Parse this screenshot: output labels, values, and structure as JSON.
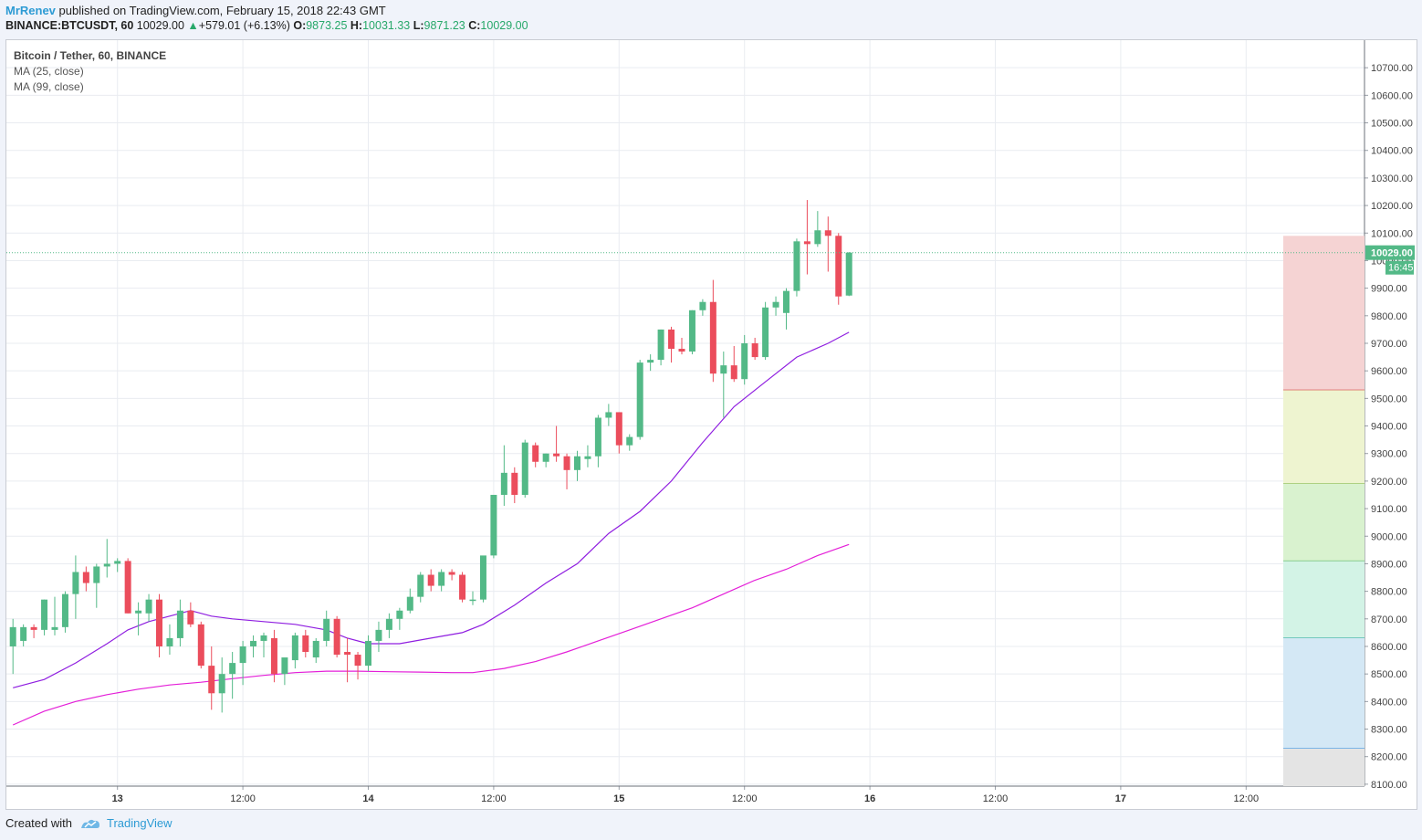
{
  "header": {
    "author": "MrRenev",
    "published_text": "published on TradingView.com, February 15, 2018 22:43 GMT",
    "symbol_interval": "BINANCE:BTCUSDT, 60",
    "last": "10029.00",
    "change": "+579.01 (+6.13%)",
    "change_arrow": "▲",
    "o_label": "O:",
    "o_value": "9873.25",
    "h_label": "H:",
    "h_value": "10031.33",
    "l_label": "L:",
    "l_value": "9871.23",
    "c_label": "C:",
    "c_value": "10029.00"
  },
  "legend": {
    "symbol": "Bitcoin / Tether, 60, BINANCE",
    "ma1": "MA (25, close)",
    "ma2": "MA (99, close)"
  },
  "footer": {
    "created_with": "Created with",
    "brand": "TradingView"
  },
  "chart_data": {
    "type": "candlestick",
    "y_axis": {
      "ticks": [
        "8100.00",
        "8200.00",
        "8300.00",
        "8400.00",
        "8500.00",
        "8600.00",
        "8700.00",
        "8800.00",
        "8900.00",
        "9000.00",
        "9100.00",
        "9200.00",
        "9300.00",
        "9400.00",
        "9500.00",
        "9600.00",
        "9700.00",
        "9800.00",
        "9900.00",
        "10000.00",
        "10100.00",
        "10200.00",
        "10300.00",
        "10400.00",
        "10500.00",
        "10600.00",
        "10700.00"
      ],
      "ylim": [
        8093,
        10800
      ]
    },
    "x_axis": {
      "ticks": [
        {
          "label": "13",
          "bold": true
        },
        {
          "label": "12:00",
          "bold": false
        },
        {
          "label": "14",
          "bold": true
        },
        {
          "label": "12:00",
          "bold": false
        },
        {
          "label": "15",
          "bold": true
        },
        {
          "label": "12:00",
          "bold": false
        },
        {
          "label": "16",
          "bold": true
        },
        {
          "label": "12:00",
          "bold": false
        },
        {
          "label": "17",
          "bold": true
        },
        {
          "label": "12:00",
          "bold": false
        }
      ],
      "bar_ticks": [
        10,
        22,
        34,
        46,
        58,
        70,
        82,
        94,
        106,
        118
      ]
    },
    "last_price": {
      "value": 10029.0,
      "label": "10029.00",
      "countdown": "16:45",
      "color": "#53b987"
    },
    "colors": {
      "up": "#53b987",
      "down": "#eb4d5c",
      "ma25": "#8f1ee0",
      "ma99": "#e41fd8"
    },
    "candles": [
      {
        "o": 8600,
        "h": 8700,
        "l": 8500,
        "c": 8670
      },
      {
        "o": 8620,
        "h": 8680,
        "l": 8600,
        "c": 8670
      },
      {
        "o": 8670,
        "h": 8680,
        "l": 8630,
        "c": 8660
      },
      {
        "o": 8660,
        "h": 8770,
        "l": 8640,
        "c": 8770
      },
      {
        "o": 8660,
        "h": 8780,
        "l": 8640,
        "c": 8670
      },
      {
        "o": 8670,
        "h": 8800,
        "l": 8650,
        "c": 8790
      },
      {
        "o": 8790,
        "h": 8930,
        "l": 8700,
        "c": 8870
      },
      {
        "o": 8870,
        "h": 8890,
        "l": 8800,
        "c": 8830
      },
      {
        "o": 8830,
        "h": 8900,
        "l": 8740,
        "c": 8890
      },
      {
        "o": 8890,
        "h": 8990,
        "l": 8850,
        "c": 8900
      },
      {
        "o": 8900,
        "h": 8920,
        "l": 8870,
        "c": 8910
      },
      {
        "o": 8910,
        "h": 8920,
        "l": 8720,
        "c": 8720
      },
      {
        "o": 8720,
        "h": 8760,
        "l": 8640,
        "c": 8730
      },
      {
        "o": 8720,
        "h": 8790,
        "l": 8690,
        "c": 8770
      },
      {
        "o": 8770,
        "h": 8790,
        "l": 8560,
        "c": 8600
      },
      {
        "o": 8600,
        "h": 8680,
        "l": 8570,
        "c": 8630
      },
      {
        "o": 8630,
        "h": 8770,
        "l": 8600,
        "c": 8730
      },
      {
        "o": 8730,
        "h": 8760,
        "l": 8670,
        "c": 8680
      },
      {
        "o": 8680,
        "h": 8690,
        "l": 8520,
        "c": 8530
      },
      {
        "o": 8530,
        "h": 8600,
        "l": 8370,
        "c": 8430
      },
      {
        "o": 8430,
        "h": 8560,
        "l": 8360,
        "c": 8500
      },
      {
        "o": 8500,
        "h": 8580,
        "l": 8410,
        "c": 8540
      },
      {
        "o": 8540,
        "h": 8620,
        "l": 8460,
        "c": 8600
      },
      {
        "o": 8600,
        "h": 8640,
        "l": 8560,
        "c": 8620
      },
      {
        "o": 8620,
        "h": 8650,
        "l": 8560,
        "c": 8640
      },
      {
        "o": 8630,
        "h": 8660,
        "l": 8470,
        "c": 8500
      },
      {
        "o": 8500,
        "h": 8550,
        "l": 8460,
        "c": 8560
      },
      {
        "o": 8550,
        "h": 8650,
        "l": 8520,
        "c": 8640
      },
      {
        "o": 8640,
        "h": 8660,
        "l": 8560,
        "c": 8580
      },
      {
        "o": 8560,
        "h": 8630,
        "l": 8540,
        "c": 8620
      },
      {
        "o": 8620,
        "h": 8730,
        "l": 8600,
        "c": 8700
      },
      {
        "o": 8700,
        "h": 8710,
        "l": 8560,
        "c": 8570
      },
      {
        "o": 8580,
        "h": 8630,
        "l": 8470,
        "c": 8570
      },
      {
        "o": 8570,
        "h": 8580,
        "l": 8480,
        "c": 8530
      },
      {
        "o": 8530,
        "h": 8640,
        "l": 8510,
        "c": 8620
      },
      {
        "o": 8620,
        "h": 8690,
        "l": 8580,
        "c": 8660
      },
      {
        "o": 8660,
        "h": 8720,
        "l": 8630,
        "c": 8700
      },
      {
        "o": 8700,
        "h": 8740,
        "l": 8660,
        "c": 8730
      },
      {
        "o": 8730,
        "h": 8810,
        "l": 8720,
        "c": 8780
      },
      {
        "o": 8780,
        "h": 8870,
        "l": 8760,
        "c": 8860
      },
      {
        "o": 8860,
        "h": 8880,
        "l": 8800,
        "c": 8820
      },
      {
        "o": 8820,
        "h": 8880,
        "l": 8800,
        "c": 8870
      },
      {
        "o": 8870,
        "h": 8880,
        "l": 8840,
        "c": 8860
      },
      {
        "o": 8860,
        "h": 8870,
        "l": 8760,
        "c": 8770
      },
      {
        "o": 8770,
        "h": 8800,
        "l": 8750,
        "c": 8770
      },
      {
        "o": 8770,
        "h": 8920,
        "l": 8760,
        "c": 8930
      },
      {
        "o": 8930,
        "h": 9150,
        "l": 8920,
        "c": 9150
      },
      {
        "o": 9150,
        "h": 9330,
        "l": 9110,
        "c": 9230
      },
      {
        "o": 9230,
        "h": 9250,
        "l": 9120,
        "c": 9150
      },
      {
        "o": 9150,
        "h": 9350,
        "l": 9140,
        "c": 9340
      },
      {
        "o": 9330,
        "h": 9340,
        "l": 9250,
        "c": 9270
      },
      {
        "o": 9270,
        "h": 9300,
        "l": 9250,
        "c": 9300
      },
      {
        "o": 9300,
        "h": 9400,
        "l": 9270,
        "c": 9290
      },
      {
        "o": 9290,
        "h": 9300,
        "l": 9170,
        "c": 9240
      },
      {
        "o": 9240,
        "h": 9310,
        "l": 9200,
        "c": 9290
      },
      {
        "o": 9280,
        "h": 9330,
        "l": 9250,
        "c": 9290
      },
      {
        "o": 9290,
        "h": 9440,
        "l": 9250,
        "c": 9430
      },
      {
        "o": 9430,
        "h": 9480,
        "l": 9400,
        "c": 9450
      },
      {
        "o": 9450,
        "h": 9450,
        "l": 9300,
        "c": 9330
      },
      {
        "o": 9330,
        "h": 9370,
        "l": 9310,
        "c": 9360
      },
      {
        "o": 9360,
        "h": 9640,
        "l": 9350,
        "c": 9630
      },
      {
        "o": 9630,
        "h": 9660,
        "l": 9600,
        "c": 9640
      },
      {
        "o": 9640,
        "h": 9750,
        "l": 9620,
        "c": 9750
      },
      {
        "o": 9750,
        "h": 9760,
        "l": 9630,
        "c": 9680
      },
      {
        "o": 9680,
        "h": 9720,
        "l": 9660,
        "c": 9670
      },
      {
        "o": 9670,
        "h": 9820,
        "l": 9660,
        "c": 9820
      },
      {
        "o": 9820,
        "h": 9860,
        "l": 9800,
        "c": 9850
      },
      {
        "o": 9850,
        "h": 9930,
        "l": 9560,
        "c": 9590
      },
      {
        "o": 9590,
        "h": 9670,
        "l": 9430,
        "c": 9620
      },
      {
        "o": 9620,
        "h": 9690,
        "l": 9560,
        "c": 9570
      },
      {
        "o": 9570,
        "h": 9730,
        "l": 9550,
        "c": 9700
      },
      {
        "o": 9700,
        "h": 9720,
        "l": 9640,
        "c": 9650
      },
      {
        "o": 9650,
        "h": 9850,
        "l": 9640,
        "c": 9830
      },
      {
        "o": 9830,
        "h": 9870,
        "l": 9800,
        "c": 9850
      },
      {
        "o": 9810,
        "h": 9900,
        "l": 9750,
        "c": 9890
      },
      {
        "o": 9890,
        "h": 10080,
        "l": 9870,
        "c": 10070
      },
      {
        "o": 10070,
        "h": 10220,
        "l": 9950,
        "c": 10060
      },
      {
        "o": 10060,
        "h": 10180,
        "l": 10050,
        "c": 10110
      },
      {
        "o": 10110,
        "h": 10160,
        "l": 9960,
        "c": 10090
      },
      {
        "o": 10090,
        "h": 10100,
        "l": 9840,
        "c": 9870
      },
      {
        "o": 9873.25,
        "h": 10031.33,
        "l": 9871.23,
        "c": 10029.0
      }
    ],
    "ma25": [
      {
        "i": 0,
        "v": 8450
      },
      {
        "i": 3,
        "v": 8480
      },
      {
        "i": 6,
        "v": 8540
      },
      {
        "i": 9,
        "v": 8610
      },
      {
        "i": 11,
        "v": 8660
      },
      {
        "i": 13,
        "v": 8690
      },
      {
        "i": 15,
        "v": 8710
      },
      {
        "i": 17,
        "v": 8730
      },
      {
        "i": 19,
        "v": 8710
      },
      {
        "i": 21,
        "v": 8700
      },
      {
        "i": 24,
        "v": 8690
      },
      {
        "i": 27,
        "v": 8680
      },
      {
        "i": 30,
        "v": 8660
      },
      {
        "i": 32,
        "v": 8630
      },
      {
        "i": 34,
        "v": 8610
      },
      {
        "i": 37,
        "v": 8610
      },
      {
        "i": 40,
        "v": 8630
      },
      {
        "i": 43,
        "v": 8650
      },
      {
        "i": 45,
        "v": 8680
      },
      {
        "i": 48,
        "v": 8750
      },
      {
        "i": 51,
        "v": 8830
      },
      {
        "i": 54,
        "v": 8900
      },
      {
        "i": 57,
        "v": 9010
      },
      {
        "i": 60,
        "v": 9090
      },
      {
        "i": 63,
        "v": 9200
      },
      {
        "i": 66,
        "v": 9340
      },
      {
        "i": 69,
        "v": 9470
      },
      {
        "i": 72,
        "v": 9560
      },
      {
        "i": 75,
        "v": 9650
      },
      {
        "i": 78,
        "v": 9700
      },
      {
        "i": 80,
        "v": 9740
      }
    ],
    "ma99": [
      {
        "i": 0,
        "v": 8315
      },
      {
        "i": 3,
        "v": 8365
      },
      {
        "i": 6,
        "v": 8400
      },
      {
        "i": 9,
        "v": 8425
      },
      {
        "i": 12,
        "v": 8445
      },
      {
        "i": 15,
        "v": 8460
      },
      {
        "i": 18,
        "v": 8470
      },
      {
        "i": 21,
        "v": 8483
      },
      {
        "i": 24,
        "v": 8495
      },
      {
        "i": 27,
        "v": 8505
      },
      {
        "i": 30,
        "v": 8510
      },
      {
        "i": 33,
        "v": 8510
      },
      {
        "i": 36,
        "v": 8508
      },
      {
        "i": 39,
        "v": 8507
      },
      {
        "i": 42,
        "v": 8505
      },
      {
        "i": 44,
        "v": 8505
      },
      {
        "i": 47,
        "v": 8520
      },
      {
        "i": 50,
        "v": 8545
      },
      {
        "i": 53,
        "v": 8580
      },
      {
        "i": 56,
        "v": 8620
      },
      {
        "i": 59,
        "v": 8660
      },
      {
        "i": 62,
        "v": 8700
      },
      {
        "i": 65,
        "v": 8740
      },
      {
        "i": 68,
        "v": 8790
      },
      {
        "i": 71,
        "v": 8840
      },
      {
        "i": 74,
        "v": 8880
      },
      {
        "i": 77,
        "v": 8930
      },
      {
        "i": 80,
        "v": 8970
      }
    ],
    "volume_profile": [
      {
        "from": 9530,
        "to": 10090,
        "color": "#f5d3d3",
        "line": "#d32f2f"
      },
      {
        "from": 9190,
        "to": 9530,
        "color": "#eef4d0",
        "line": "#7cb342"
      },
      {
        "from": 8910,
        "to": 9190,
        "color": "#d9f2cf",
        "line": "#4caf50"
      },
      {
        "from": 8630,
        "to": 8910,
        "color": "#d3f3e6",
        "line": "#26a69a"
      },
      {
        "from": 8230,
        "to": 8630,
        "color": "#d4e8f5",
        "line": "#1e88e5"
      },
      {
        "from": 8093,
        "to": 8230,
        "color": "#e4e4e4",
        "line": null
      }
    ]
  }
}
